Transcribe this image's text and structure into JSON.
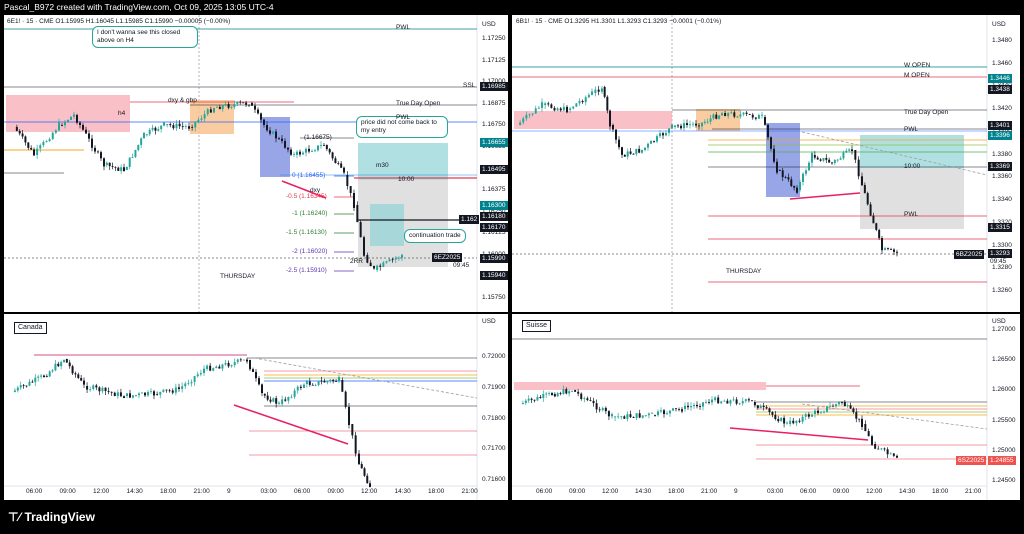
{
  "window": {
    "title": "Pascal_B972 created with TradingView.com, Oct 09, 2025 13:05 UTC-4"
  },
  "brand": {
    "logo_text": "TradingView"
  },
  "left_top": {
    "header": "6E1! · 15 · CME  O1.15995  H1.16045  L1.15985  C1.15990  −0.00005 (−0.00%)",
    "currency": "USD",
    "price_ticks": [
      "1.17250",
      "1.17125",
      "1.17000",
      "1.16875",
      "1.16750",
      "1.16625",
      "1.16500",
      "1.16375",
      "1.16250",
      "1.16125",
      "1.16000",
      "1.15875",
      "1.15750"
    ],
    "tags": [
      {
        "text": "1.16985",
        "color": "#131722"
      },
      {
        "text": "1.16655",
        "color": "#00838f"
      },
      {
        "text": "1.16495",
        "color": "#131722"
      },
      {
        "text": "1.16300",
        "color": "#00838f"
      },
      {
        "text": "1.16180",
        "color": "#131722"
      },
      {
        "text": "1.16170",
        "color": "#131722"
      },
      {
        "text": "1.15990",
        "color": "#131722"
      },
      {
        "text": "1.15940",
        "color": "#131722"
      }
    ],
    "symbol_tag": "6EZ2025",
    "countdown": "09:45",
    "annotations": {
      "pwl_top": "PWL",
      "h4": "h4",
      "dxy": "dxy & gbp",
      "ssl": "SSL",
      "true_day_open": "True Day Open",
      "pwl": "PWL",
      "level_0": "0 (1.16455)",
      "level_m05": "-0.5 (1.16345)",
      "level_m1": "-1 (1.16240)",
      "level_m15": "-1.5 (1.16130)",
      "level_m2": "-2 (1.16020)",
      "level_m25": "-2.5 (1.15910)",
      "fib_top": "(1.16675)",
      "thursday": "THURSDAY",
      "m30": "m30",
      "ten": "10:00",
      "rr": "2RR",
      "dxy_small": "dxy"
    },
    "bubbles": {
      "wanna": "I don't wanna see this closed above on H4",
      "entry": "price did not come back to my entry",
      "continuation": "continuation trade"
    },
    "box_price": "1.162"
  },
  "right_top": {
    "header": "6B1! · 15 · CME  O1.3295  H1.3301  L1.3293  C1.3293  −0.0001 (−0.01%)",
    "currency": "USD",
    "price_ticks": [
      "1.3480",
      "1.3460",
      "1.3440",
      "1.3420",
      "1.3400",
      "1.3380",
      "1.3360",
      "1.3340",
      "1.3320",
      "1.3300",
      "1.3280",
      "1.3260"
    ],
    "tags": [
      {
        "text": "1.3446",
        "color": "#00838f"
      },
      {
        "text": "1.3438",
        "color": "#131722"
      },
      {
        "text": "1.3401",
        "color": "#131722"
      },
      {
        "text": "1.3396",
        "color": "#00838f"
      },
      {
        "text": "1.3369",
        "color": "#131722"
      },
      {
        "text": "1.3315",
        "color": "#131722"
      },
      {
        "text": "1.3293",
        "color": "#131722"
      }
    ],
    "symbol_tag": "6BZ2025",
    "countdown": "09:45",
    "annotations": {
      "w_open": "W OPEN",
      "m_open": "M OPEN",
      "true_day_open": "True Day Open",
      "pwl": "PWL",
      "pwl2": "PWL",
      "ten": "10:00",
      "thursday": "THURSDAY"
    }
  },
  "left_bottom": {
    "title": "Canada",
    "currency": "USD",
    "price_ticks": [
      "0.72000",
      "0.71900",
      "0.71800",
      "0.71700",
      "0.71600"
    ],
    "time_ticks": [
      "06:00",
      "09:00",
      "12:00",
      "14:30",
      "18:00",
      "21:00",
      "9",
      "03:00",
      "06:00",
      "09:00",
      "12:00",
      "14:30",
      "18:00",
      "21:00"
    ]
  },
  "right_bottom": {
    "title": "Suisse",
    "currency": "USD",
    "price_ticks": [
      "1.27000",
      "1.26500",
      "1.26000",
      "1.25500",
      "1.25000",
      "1.24500"
    ],
    "symbol_tag": "6SZ2025",
    "last_price": "1.24855",
    "time_ticks": [
      "06:00",
      "09:00",
      "12:00",
      "14:30",
      "18:00",
      "21:00",
      "9",
      "03:00",
      "06:00",
      "09:00",
      "12:00",
      "14:30",
      "18:00",
      "21:00"
    ]
  }
}
